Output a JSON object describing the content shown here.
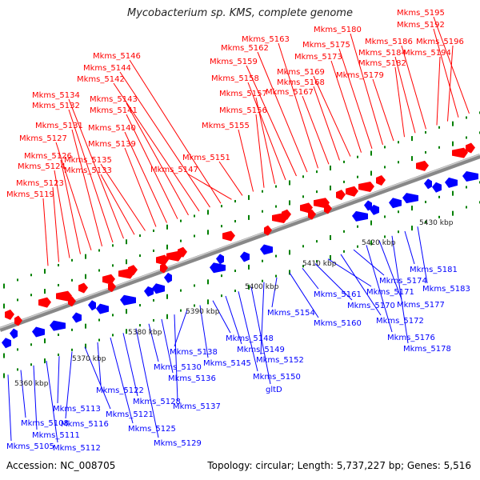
{
  "title": "Mycobacterium sp. KMS, complete genome",
  "accession": "Accession: NC_008705",
  "summary": "Topology: circular; Length: 5,737,227 bp; Genes: 5,516",
  "colors": {
    "forward": "#ff0000",
    "reverse": "#0000ff",
    "backbone": "#8c8c8c",
    "ticks": "#008000"
  },
  "scale_labels": [
    "5360 kbp",
    "5370 kbp",
    "5380 kbp",
    "5390 kbp",
    "5400 kbp",
    "5410 kbp",
    "5420 kbp",
    "5430 kbp"
  ],
  "forward_labels": [
    "Mkms_5119",
    "Mkms_5123",
    "Mkms_5124",
    "Mkms_5126",
    "Mkms_5127",
    "Mkms_5131",
    "Mkms_5132",
    "Mkms_5134",
    "Mkms_5133",
    "Mkms_5135",
    "Mkms_5139",
    "Mkms_5140",
    "Mkms_5141",
    "Mkms_5143",
    "Mkms_5142",
    "Mkms_5144",
    "Mkms_5146",
    "Mkms_5147",
    "Mkms_5151",
    "Mkms_5155",
    "Mkms_5156",
    "Mkms_5157",
    "Mkms_5158",
    "Mkms_5159",
    "Mkms_5162",
    "Mkms_5163",
    "Mkms_5167",
    "Mkms_5168",
    "Mkms_5169",
    "Mkms_5173",
    "Mkms_5175",
    "Mkms_5180",
    "Mkms_5179",
    "Mkms_5182",
    "Mkms_5184",
    "Mkms_5186",
    "Mkms_5194",
    "Mkms_5196",
    "Mkms_5192",
    "Mkms_5195"
  ],
  "reverse_labels": [
    "Mkms_5105",
    "Mkms_5108",
    "Mkms_5111",
    "Mkms_5112",
    "Mkms_5113",
    "Mkms_5116",
    "Mkms_5121",
    "Mkms_5122",
    "Mkms_5125",
    "Mkms_5128",
    "Mkms_5129",
    "Mkms_5130",
    "Mkms_5136",
    "Mkms_5137",
    "Mkms_5138",
    "Mkms_5145",
    "Mkms_5148",
    "Mkms_5149",
    "Mkms_5150",
    "gltD",
    "Mkms_5152",
    "Mkms_5154",
    "Mkms_5160",
    "Mkms_5161",
    "Mkms_5170",
    "Mkms_5171",
    "Mkms_5172",
    "Mkms_5174",
    "Mkms_5176",
    "Mkms_5177",
    "Mkms_5178",
    "Mkms_5181",
    "Mkms_5183"
  ]
}
